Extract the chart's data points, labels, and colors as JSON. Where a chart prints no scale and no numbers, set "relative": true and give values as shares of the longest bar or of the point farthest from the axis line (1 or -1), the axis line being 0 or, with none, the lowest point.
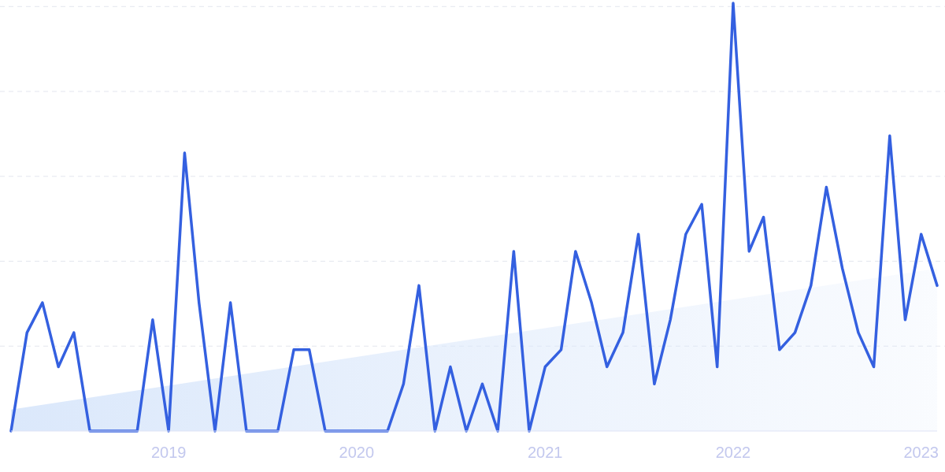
{
  "chart_data": {
    "type": "line",
    "relative": true,
    "grid": "y",
    "xlim": [
      "2018-03",
      "2023-02"
    ],
    "xticks": [
      "2019",
      "2020",
      "2021",
      "2022",
      "2023"
    ],
    "x": [
      "2018-03",
      "2018-04",
      "2018-05",
      "2018-06",
      "2018-07",
      "2018-08",
      "2018-09",
      "2018-10",
      "2018-11",
      "2018-12",
      "2019-01",
      "2019-02",
      "2019-03",
      "2019-04",
      "2019-05",
      "2019-06",
      "2019-07",
      "2019-08",
      "2019-09",
      "2019-10",
      "2019-11",
      "2019-12",
      "2020-01",
      "2020-02",
      "2020-03",
      "2020-04",
      "2020-05",
      "2020-06",
      "2020-07",
      "2020-08",
      "2020-09",
      "2020-10",
      "2020-11",
      "2020-12",
      "2021-01",
      "2021-02",
      "2021-03",
      "2021-04",
      "2021-05",
      "2021-06",
      "2021-07",
      "2021-08",
      "2021-09",
      "2021-10",
      "2021-11",
      "2021-12",
      "2022-01",
      "2022-02",
      "2022-03",
      "2022-04",
      "2022-05",
      "2022-06",
      "2022-07",
      "2022-08",
      "2022-09",
      "2022-10",
      "2022-11",
      "2022-12",
      "2023-01",
      "2023-02"
    ],
    "series": [
      {
        "type": "area",
        "color": "#dbe8fb",
        "x": [
          "2018-03",
          "2023-02"
        ],
        "values": [
          0.05,
          0.38
        ]
      },
      {
        "color": "#3460e0",
        "values": [
          0,
          0.23,
          0.3,
          0.15,
          0.23,
          0,
          0,
          0,
          0,
          0.26,
          0,
          0.65,
          0.3,
          0,
          0.3,
          0,
          0,
          0,
          0.19,
          0.19,
          0,
          0,
          0,
          0,
          0,
          0.11,
          0.34,
          0,
          0.15,
          0,
          0.11,
          0,
          0.42,
          0,
          0.15,
          0.19,
          0.42,
          0.3,
          0.15,
          0.23,
          0.46,
          0.11,
          0.26,
          0.46,
          0.53,
          0.15,
          1,
          0.42,
          0.5,
          0.19,
          0.23,
          0.34,
          0.57,
          0.38,
          0.23,
          0.15,
          0.69,
          0.26,
          0.46,
          0.34
        ]
      }
    ]
  }
}
